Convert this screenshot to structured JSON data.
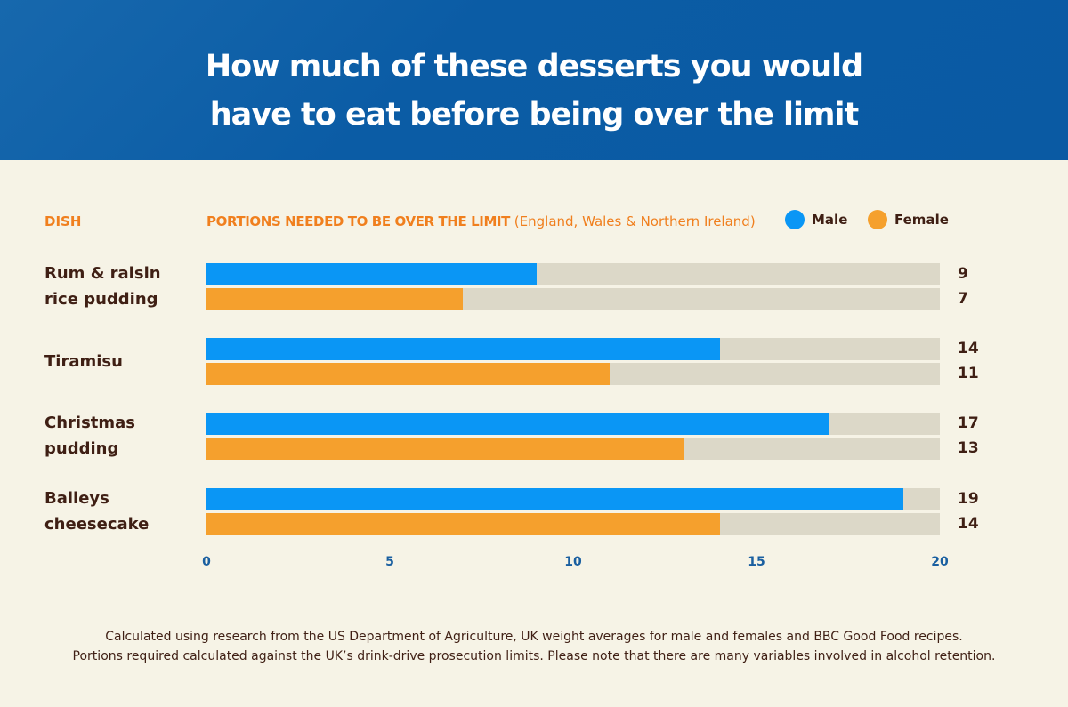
{
  "title_line1": "How much of these desserts you would",
  "title_line2": "have to eat before being over the limit",
  "chart_data": {
    "type": "bar",
    "orientation": "horizontal",
    "dish_header": "DISH",
    "value_header": "PORTIONS NEEDED TO BE OVER THE LIMIT",
    "value_header_note": "(England, Wales & Northern Ireland)",
    "categories": [
      [
        "Rum & raisin",
        "rice pudding"
      ],
      [
        "Tiramisu"
      ],
      [
        "Christmas",
        "pudding"
      ],
      [
        "Baileys",
        "cheesecake"
      ]
    ],
    "series": [
      {
        "name": "Male",
        "color": "#0a96f5",
        "values": [
          9,
          14,
          17,
          19
        ]
      },
      {
        "name": "Female",
        "color": "#f5a02d",
        "values": [
          7,
          11,
          13,
          14
        ]
      }
    ],
    "xlim": [
      0,
      20
    ],
    "xticks": [
      "0",
      "5",
      "10",
      "15",
      "20"
    ],
    "legend": "top-right",
    "grid": false
  },
  "footnote_line1": "Calculated using research from the US Department of Agriculture, UK weight averages for male and females and BBC Good Food recipes.",
  "footnote_line2": "Portions required calculated against the UK’s drink-drive prosecution limits. Please note that there are many variables involved in alcohol retention."
}
